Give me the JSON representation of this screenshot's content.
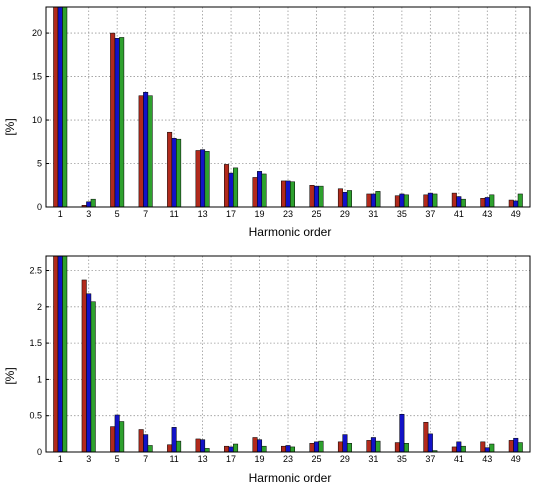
{
  "chart_data": [
    {
      "type": "bar",
      "categories": [
        "1",
        "3",
        "5",
        "7",
        "11",
        "13",
        "17",
        "19",
        "23",
        "25",
        "29",
        "31",
        "35",
        "37",
        "41",
        "43",
        "49"
      ],
      "series": [
        {
          "values": [
            23,
            0.2,
            20.0,
            12.8,
            8.6,
            6.5,
            4.9,
            3.4,
            3.0,
            2.5,
            2.1,
            1.5,
            1.3,
            1.4,
            1.6,
            1.0,
            0.8
          ]
        },
        {
          "values": [
            23,
            0.6,
            19.4,
            13.2,
            7.9,
            6.6,
            3.9,
            4.1,
            3.0,
            2.4,
            1.7,
            1.5,
            1.5,
            1.6,
            1.2,
            1.1,
            0.7
          ]
        },
        {
          "values": [
            23,
            0.9,
            19.5,
            12.8,
            7.8,
            6.4,
            4.5,
            3.8,
            2.9,
            2.4,
            1.9,
            1.8,
            1.4,
            1.5,
            0.9,
            1.4,
            1.5
          ]
        }
      ],
      "colors": [
        "#b22a1c",
        "#1212c8",
        "#2ea12e"
      ],
      "xlabel": "Harmonic order",
      "ylabel": "[%]",
      "ylim": [
        0,
        23
      ],
      "yticks": [
        "0",
        "5",
        "10",
        "15",
        "20"
      ],
      "grid": true
    },
    {
      "type": "bar",
      "categories": [
        "1",
        "3",
        "5",
        "7",
        "11",
        "13",
        "17",
        "19",
        "23",
        "25",
        "29",
        "31",
        "35",
        "37",
        "41",
        "43",
        "49"
      ],
      "series": [
        {
          "values": [
            2.7,
            2.37,
            0.35,
            0.31,
            0.1,
            0.18,
            0.08,
            0.2,
            0.08,
            0.12,
            0.14,
            0.16,
            0.13,
            0.41,
            0.07,
            0.14,
            0.16
          ]
        },
        {
          "values": [
            2.7,
            2.18,
            0.51,
            0.24,
            0.34,
            0.17,
            0.07,
            0.17,
            0.09,
            0.14,
            0.24,
            0.2,
            0.52,
            0.25,
            0.14,
            0.06,
            0.19
          ]
        },
        {
          "values": [
            2.7,
            2.07,
            0.42,
            0.09,
            0.15,
            0.05,
            0.11,
            0.08,
            0.07,
            0.15,
            0.12,
            0.15,
            0.12,
            0.02,
            0.08,
            0.11,
            0.13
          ]
        }
      ],
      "colors": [
        "#b22a1c",
        "#1212c8",
        "#2ea12e"
      ],
      "xlabel": "Harmonic order",
      "ylabel": "[%]",
      "ylim": [
        0,
        2.7
      ],
      "yticks": [
        "0",
        "0.5",
        "1",
        "1.5",
        "2",
        "2.5"
      ],
      "grid": true
    }
  ]
}
